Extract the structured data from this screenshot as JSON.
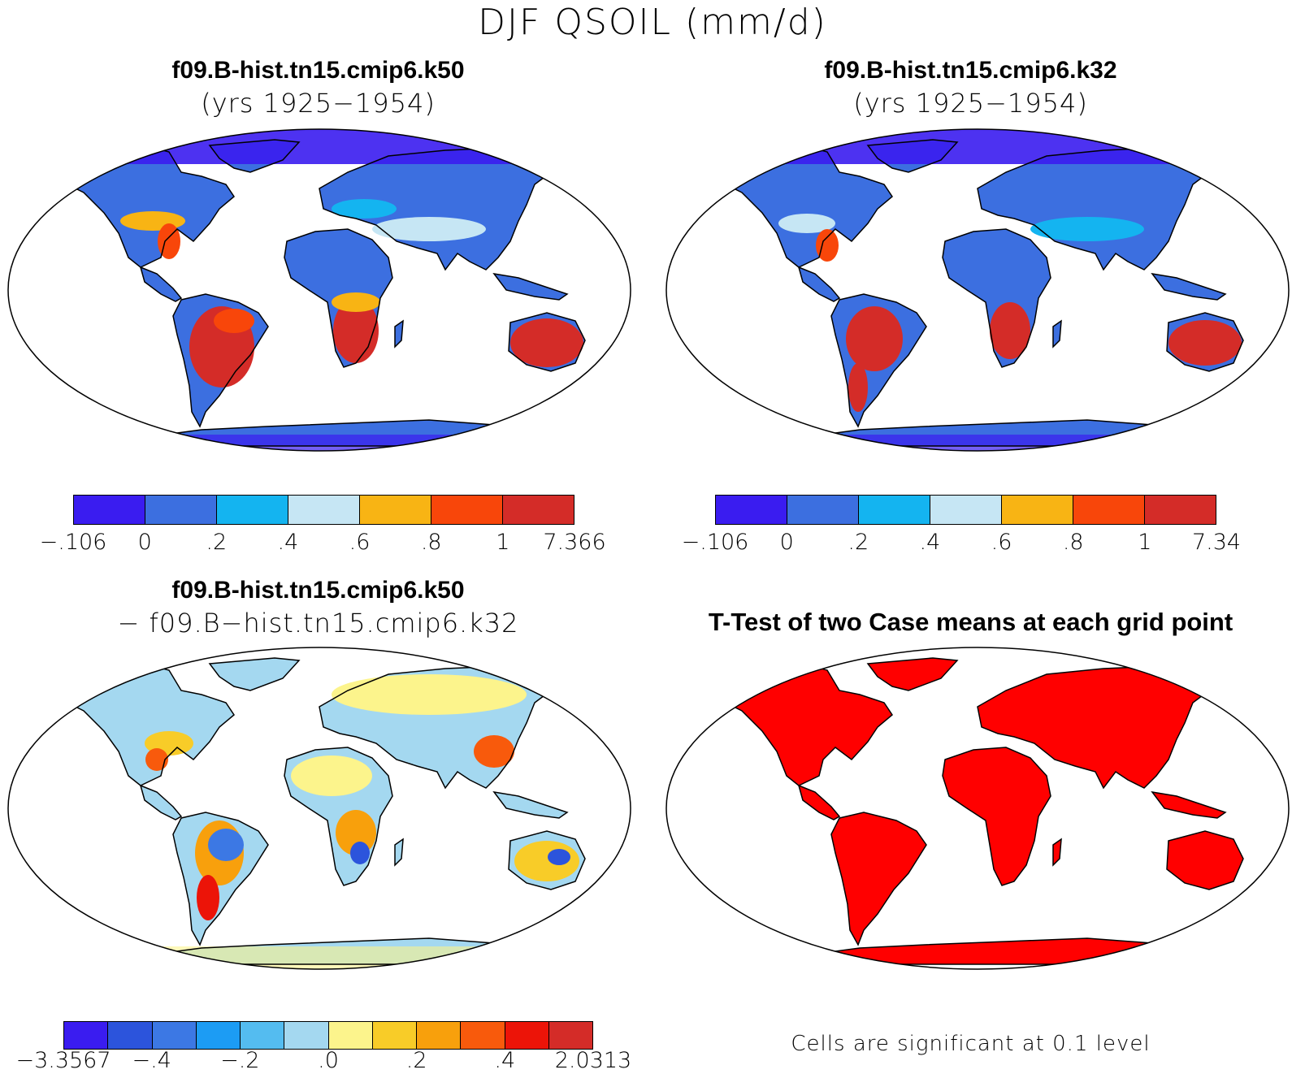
{
  "figure": {
    "title": "DJF QSOIL (mm/d)"
  },
  "panels": {
    "top_left": {
      "title": "f09.B-hist.tn15.cmip6.k50",
      "subtitle": "(yrs 1925−1954)",
      "colorbar": {
        "colors": [
          "#3a1cf0",
          "#3c6fe0",
          "#14b4f0",
          "#c6e6f4",
          "#f8b414",
          "#f8460a",
          "#d42c28"
        ],
        "labels": [
          "−.106",
          "0",
          ".2",
          ".4",
          ".6",
          ".8",
          "1",
          "7.366"
        ]
      }
    },
    "top_right": {
      "title": "f09.B-hist.tn15.cmip6.k32",
      "subtitle": "(yrs 1925−1954)",
      "colorbar": {
        "colors": [
          "#3a1cf0",
          "#3c6fe0",
          "#14b4f0",
          "#c6e6f4",
          "#f8b414",
          "#f8460a",
          "#d42c28"
        ],
        "labels": [
          "−.106",
          "0",
          ".2",
          ".4",
          ".6",
          ".8",
          "1",
          "7.34"
        ]
      }
    },
    "bottom_left": {
      "title": "f09.B-hist.tn15.cmip6.k50",
      "subtitle": "− f09.B−hist.tn15.cmip6.k32",
      "colorbar": {
        "colors": [
          "#3a1cf0",
          "#2c54dc",
          "#3c78e4",
          "#1c9cf4",
          "#54bcf0",
          "#a4d8f0",
          "#fcf48c",
          "#f8cc28",
          "#f8a00c",
          "#f85a0c",
          "#ec1408",
          "#d42c28"
        ],
        "labels": [
          "−3.3567",
          "−.4",
          "−.2",
          ".0",
          ".2",
          ".4",
          "2.0313"
        ]
      }
    },
    "bottom_right": {
      "title": "T-Test of two Case means at each grid point",
      "note": "Cells are significant at 0.1 level",
      "significant_color": "#ff0000"
    }
  }
}
